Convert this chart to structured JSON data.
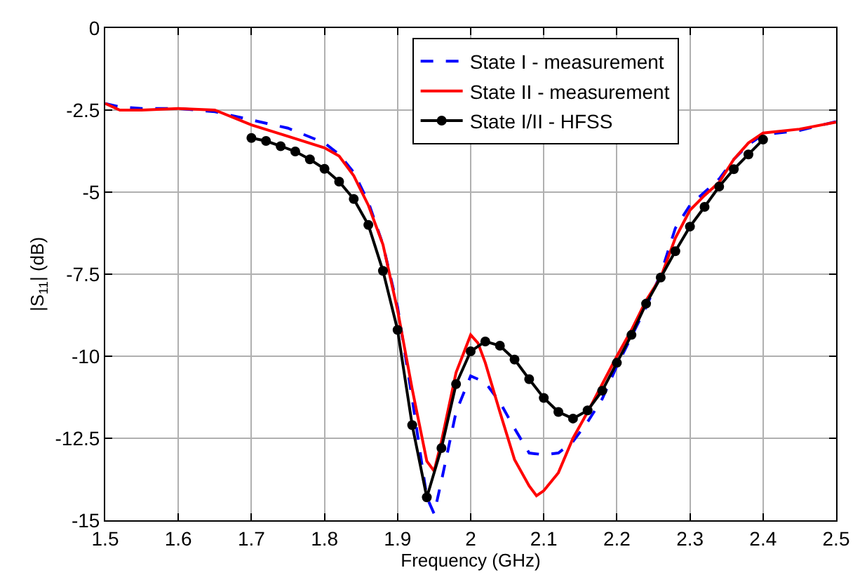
{
  "chart_data": {
    "type": "line",
    "xlabel": "Frequency (GHz)",
    "ylabel": "|S$_{11}$| (dB)",
    "xlim": [
      1.5,
      2.5
    ],
    "xticks": [
      1.5,
      1.6,
      1.7,
      1.8,
      1.9,
      2,
      2.1,
      2.2,
      2.3,
      2.4,
      2.5
    ],
    "ylim": [
      -15,
      0
    ],
    "yticks": [
      -15,
      -12.5,
      -10,
      -7.5,
      -5,
      -2.5,
      0
    ],
    "grid": true,
    "legend": "top",
    "series": [
      {
        "name": "State I - measurement",
        "color": "#0000ff",
        "line_style": "dashed",
        "marker": "none",
        "x": [
          1.5,
          1.52,
          1.55,
          1.6,
          1.65,
          1.7,
          1.75,
          1.8,
          1.82,
          1.84,
          1.86,
          1.88,
          1.9,
          1.92,
          1.94,
          1.95,
          1.96,
          1.98,
          2.0,
          2.02,
          2.04,
          2.06,
          2.08,
          2.1,
          2.12,
          2.14,
          2.16,
          2.18,
          2.2,
          2.22,
          2.24,
          2.26,
          2.28,
          2.3,
          2.32,
          2.34,
          2.36,
          2.38,
          2.4,
          2.45,
          2.5
        ],
        "values": [
          -2.3,
          -2.4,
          -2.45,
          -2.45,
          -2.55,
          -2.8,
          -3.05,
          -3.5,
          -3.85,
          -4.4,
          -5.3,
          -6.6,
          -8.5,
          -11.3,
          -14.3,
          -14.8,
          -13.8,
          -11.7,
          -10.6,
          -10.8,
          -11.4,
          -12.2,
          -12.95,
          -13.0,
          -12.95,
          -12.6,
          -12.0,
          -11.3,
          -10.3,
          -9.4,
          -8.5,
          -7.5,
          -6.1,
          -5.4,
          -5.0,
          -4.6,
          -4.0,
          -3.55,
          -3.25,
          -3.12,
          -2.85
        ]
      },
      {
        "name": "State II - measurement",
        "color": "#ff0000",
        "line_style": "solid",
        "marker": "none",
        "x": [
          1.5,
          1.52,
          1.55,
          1.6,
          1.65,
          1.7,
          1.75,
          1.8,
          1.82,
          1.84,
          1.86,
          1.88,
          1.9,
          1.92,
          1.94,
          1.95,
          1.96,
          1.98,
          2.0,
          2.01,
          2.02,
          2.04,
          2.06,
          2.08,
          2.09,
          2.1,
          2.12,
          2.14,
          2.16,
          2.18,
          2.2,
          2.22,
          2.24,
          2.26,
          2.28,
          2.3,
          2.32,
          2.34,
          2.36,
          2.38,
          2.4,
          2.45,
          2.5
        ],
        "values": [
          -2.3,
          -2.5,
          -2.5,
          -2.45,
          -2.5,
          -2.95,
          -3.3,
          -3.65,
          -3.9,
          -4.5,
          -5.4,
          -6.6,
          -8.6,
          -11.0,
          -13.2,
          -13.5,
          -12.6,
          -10.5,
          -9.35,
          -9.6,
          -10.2,
          -11.7,
          -13.15,
          -13.95,
          -14.25,
          -14.1,
          -13.55,
          -12.5,
          -11.7,
          -10.85,
          -10.0,
          -9.2,
          -8.3,
          -7.6,
          -6.4,
          -5.55,
          -5.1,
          -4.7,
          -4.0,
          -3.5,
          -3.2,
          -3.08,
          -2.87
        ]
      },
      {
        "name": "State I/II - HFSS",
        "color": "#000000",
        "line_style": "solid",
        "marker": "circle",
        "x": [
          1.7,
          1.72,
          1.74,
          1.76,
          1.78,
          1.8,
          1.82,
          1.84,
          1.86,
          1.88,
          1.9,
          1.92,
          1.94,
          1.96,
          1.98,
          2.0,
          2.02,
          2.04,
          2.06,
          2.08,
          2.1,
          2.12,
          2.14,
          2.16,
          2.18,
          2.2,
          2.22,
          2.24,
          2.26,
          2.28,
          2.3,
          2.32,
          2.34,
          2.36,
          2.38,
          2.4
        ],
        "values": [
          -3.35,
          -3.44,
          -3.6,
          -3.76,
          -4.0,
          -4.29,
          -4.68,
          -5.21,
          -6.0,
          -7.4,
          -9.2,
          -12.1,
          -14.3,
          -12.8,
          -10.85,
          -9.85,
          -9.55,
          -9.68,
          -10.1,
          -10.7,
          -11.27,
          -11.7,
          -11.9,
          -11.65,
          -11.05,
          -10.2,
          -9.35,
          -8.4,
          -7.6,
          -6.8,
          -6.05,
          -5.45,
          -4.83,
          -4.3,
          -3.85,
          -3.4
        ]
      }
    ]
  }
}
